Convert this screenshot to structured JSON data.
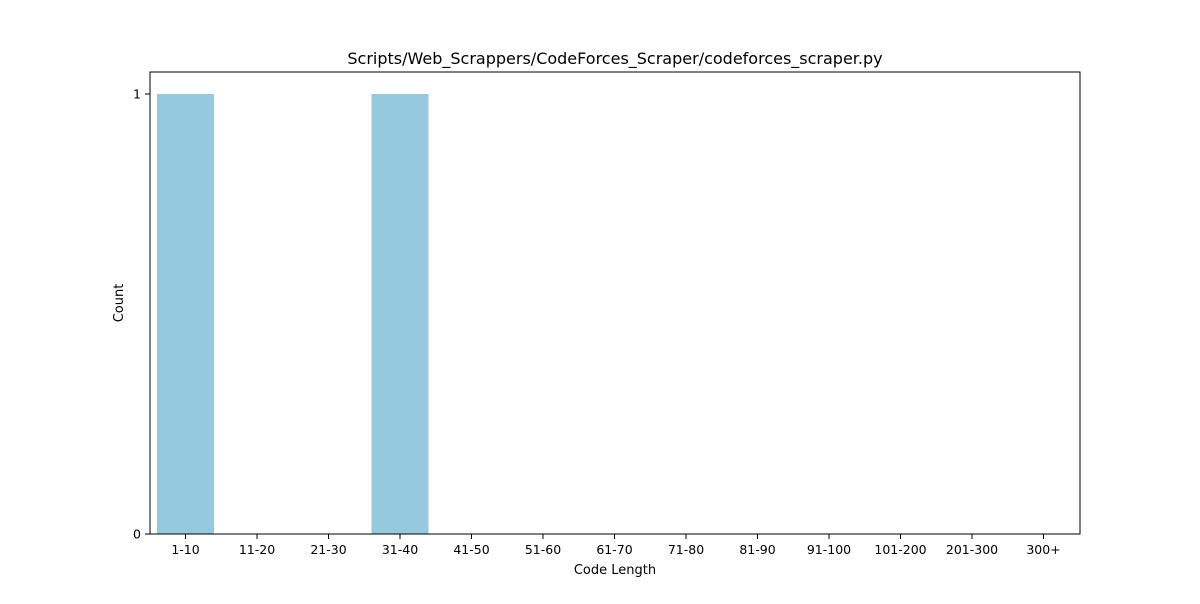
{
  "chart_data": {
    "type": "bar",
    "title": "Scripts/Web_Scrappers/CodeForces_Scraper/codeforces_scraper.py",
    "xlabel": "Code Length",
    "ylabel": "Count",
    "categories": [
      "1-10",
      "11-20",
      "21-30",
      "31-40",
      "41-50",
      "51-60",
      "61-70",
      "71-80",
      "81-90",
      "91-100",
      "101-200",
      "201-300",
      "300+"
    ],
    "values": [
      1,
      0,
      0,
      1,
      0,
      0,
      0,
      0,
      0,
      0,
      0,
      0,
      0
    ],
    "ylim": [
      0,
      1
    ],
    "yticks": [
      0,
      1
    ],
    "bar_color": "#96c9de",
    "grid": false,
    "legend": "none"
  }
}
